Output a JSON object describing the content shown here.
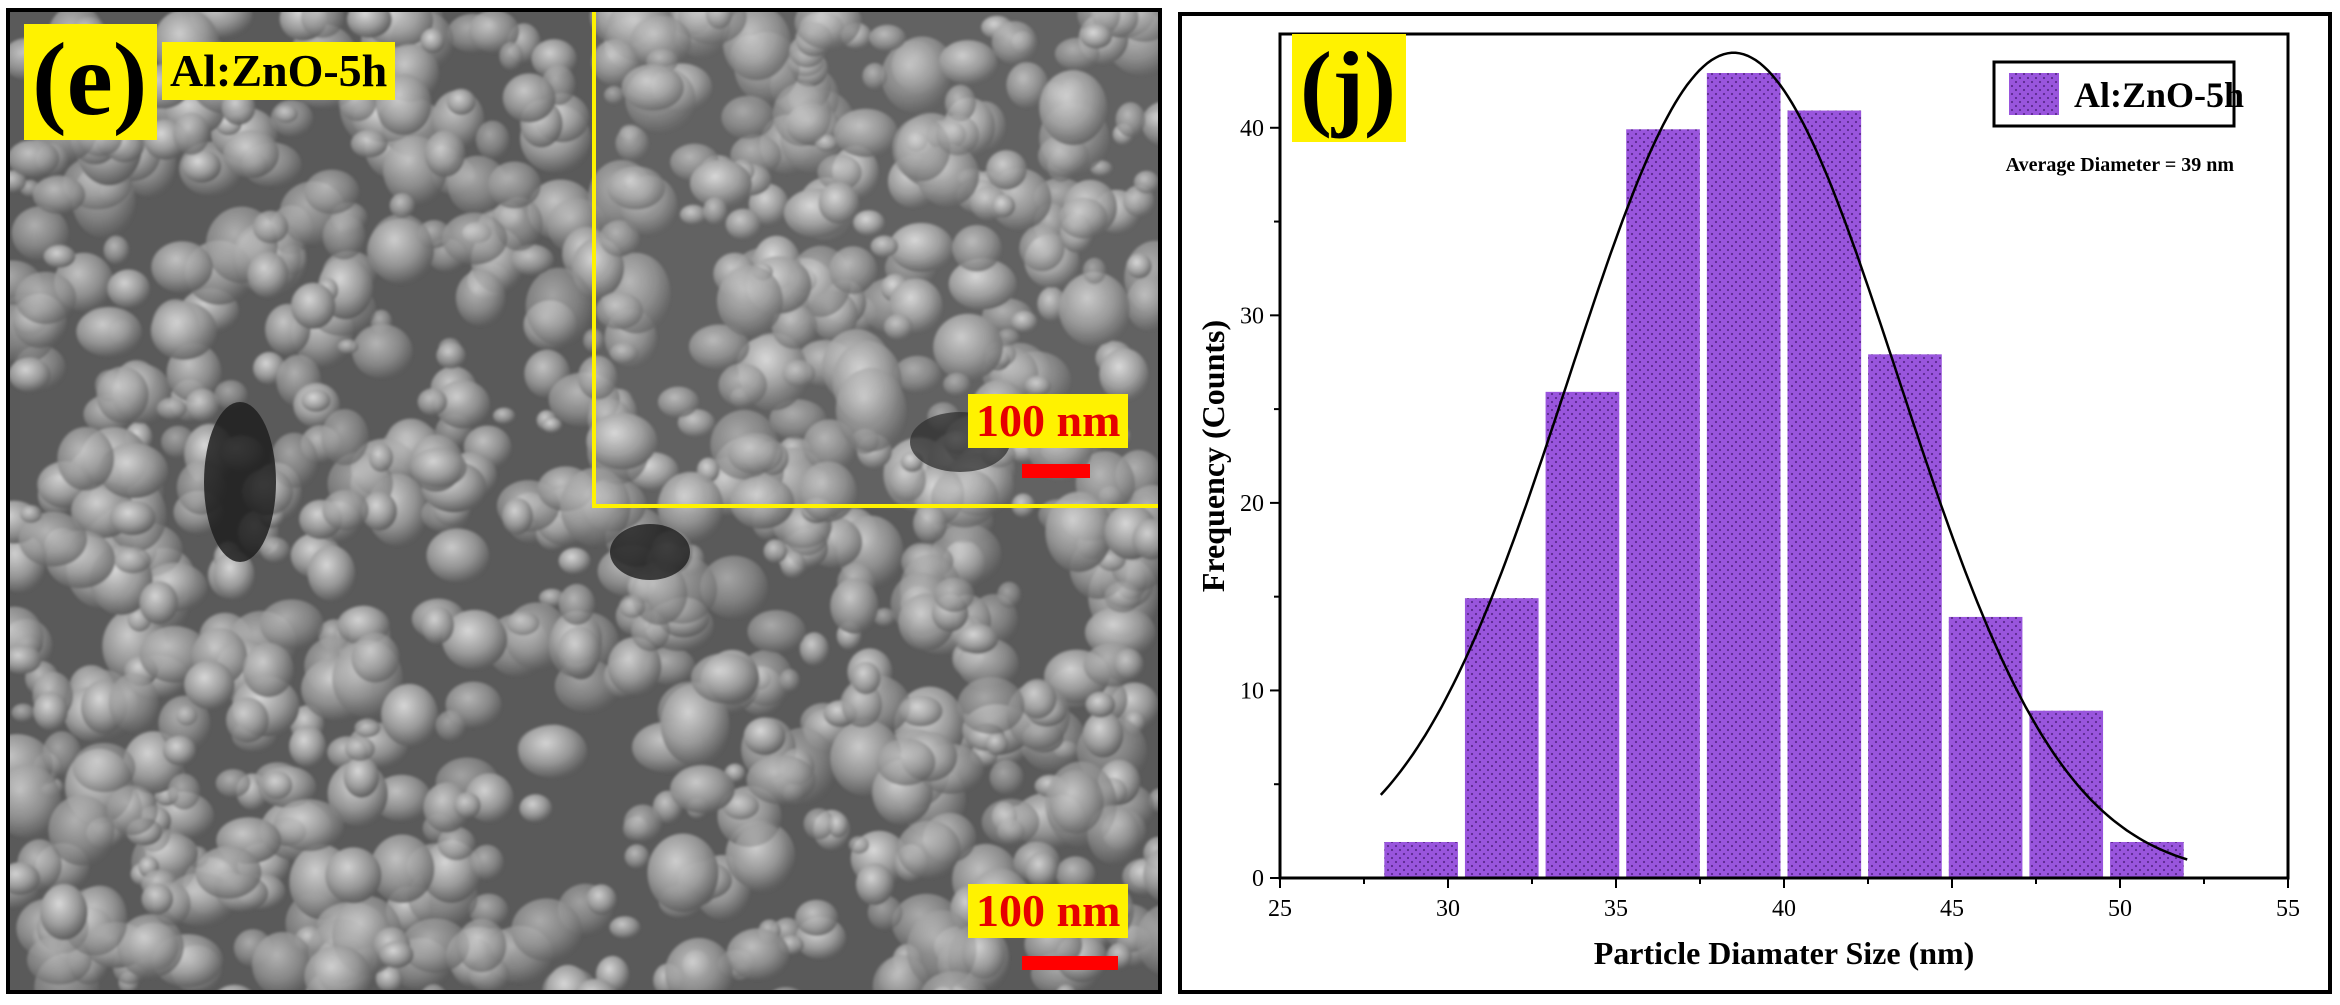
{
  "sem": {
    "panel_letter": "(e)",
    "sample_label": "Al:ZnO-5h",
    "inset_scale_label": "100 nm",
    "main_scale_label": "100 nm"
  },
  "histogram": {
    "panel_letter": "(j)",
    "annotation": "Average Diameter = 39 nm"
  },
  "chart_data": {
    "type": "bar",
    "title": "",
    "xlabel": "Particle Diamater Size (nm)",
    "ylabel": "Frequency (Counts)",
    "xlim": [
      25,
      55
    ],
    "ylim": [
      0,
      45
    ],
    "xticks": [
      25,
      30,
      35,
      40,
      45,
      50,
      55
    ],
    "yticks": [
      0,
      10,
      20,
      30,
      40
    ],
    "bar_width": 2.4,
    "x": [
      29.2,
      31.6,
      34.0,
      36.4,
      38.8,
      41.2,
      43.6,
      46.0,
      48.4,
      50.8
    ],
    "values": [
      2,
      15,
      26,
      40,
      43,
      41,
      28,
      14,
      9,
      2
    ],
    "series": [
      {
        "name": "Al:ZnO-5h",
        "values": [
          2,
          15,
          26,
          40,
          43,
          41,
          28,
          14,
          9,
          2
        ]
      }
    ],
    "fit": {
      "type": "gaussian",
      "mean": 38.5,
      "sigma": 4.9,
      "amplitude": 44,
      "x_range": [
        28,
        52
      ]
    },
    "legend_position": "top-right",
    "grid": false,
    "colors": {
      "bar_fill": "#9955dd",
      "bar_stroke": "#ffffff",
      "fit_line": "#000000"
    }
  }
}
